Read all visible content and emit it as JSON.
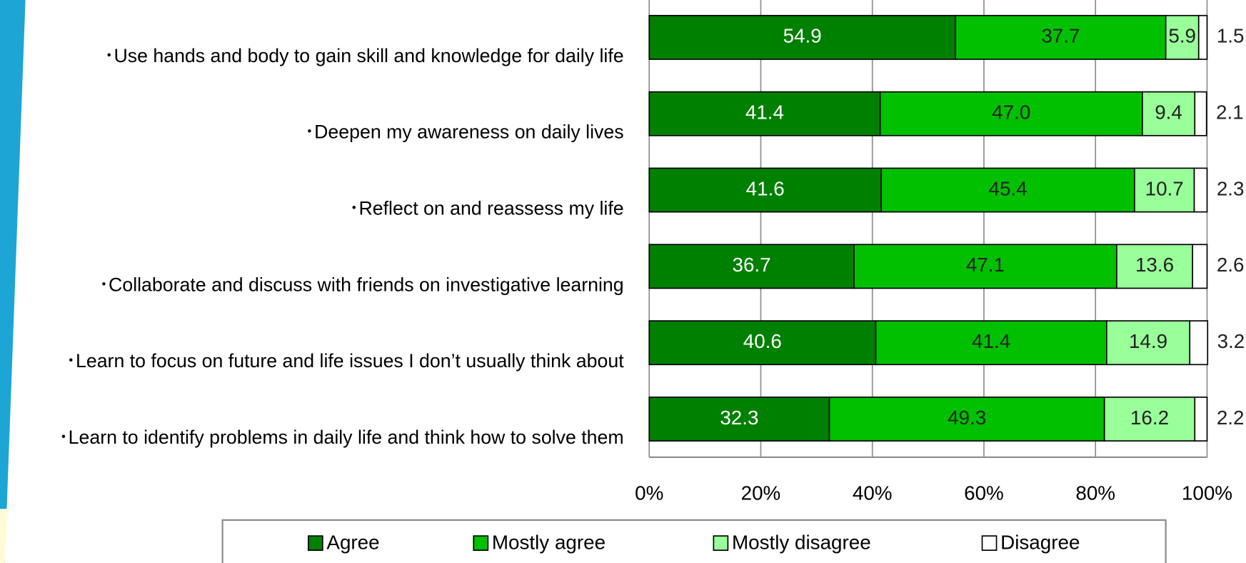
{
  "chart_data": {
    "type": "stacked-bar-horizontal",
    "categories": [
      "･Use hands and body to gain skill and knowledge for daily life",
      "･Deepen my awareness on daily lives",
      "･Reflect on and reassess my life",
      "･Collaborate and discuss with friends on investigative learning",
      "･Learn to focus on future and life issues I don’t usually think about",
      "･Learn to identify problems in daily life and think how to solve them"
    ],
    "series": [
      {
        "name": "Agree",
        "color": "#008000",
        "values": [
          54.9,
          41.4,
          41.6,
          36.7,
          40.6,
          32.3
        ],
        "value_labels": [
          "54.9",
          "41.4",
          "41.6",
          "36.7",
          "40.6",
          "32.3"
        ]
      },
      {
        "name": "Mostly agree",
        "color": "#00c000",
        "values": [
          37.7,
          47.0,
          45.4,
          47.1,
          41.4,
          49.3
        ],
        "value_labels": [
          "37.7",
          "47.0",
          "45.4",
          "47.1",
          "41.4",
          "49.3"
        ]
      },
      {
        "name": "Mostly disagree",
        "color": "#99ff99",
        "values": [
          5.9,
          9.4,
          10.7,
          13.6,
          14.9,
          16.2
        ],
        "value_labels": [
          "5.9",
          "9.4",
          "10.7",
          "13.6",
          "14.9",
          "16.2"
        ]
      },
      {
        "name": "Disagree",
        "color": "#ffffff",
        "values": [
          1.5,
          2.1,
          2.3,
          2.6,
          3.2,
          2.2
        ],
        "value_labels": [
          "1.5",
          "2.1",
          "2.3",
          "2.6",
          "3.2",
          "2.2"
        ]
      }
    ],
    "xlim": [
      0,
      100
    ],
    "xticks": [
      {
        "value": 0,
        "label": "0%"
      },
      {
        "value": 20,
        "label": "20%"
      },
      {
        "value": 40,
        "label": "40%"
      },
      {
        "value": 60,
        "label": "60%"
      },
      {
        "value": 80,
        "label": "80%"
      },
      {
        "value": 100,
        "label": "100%"
      }
    ],
    "grid": true,
    "legend": "bottom"
  }
}
